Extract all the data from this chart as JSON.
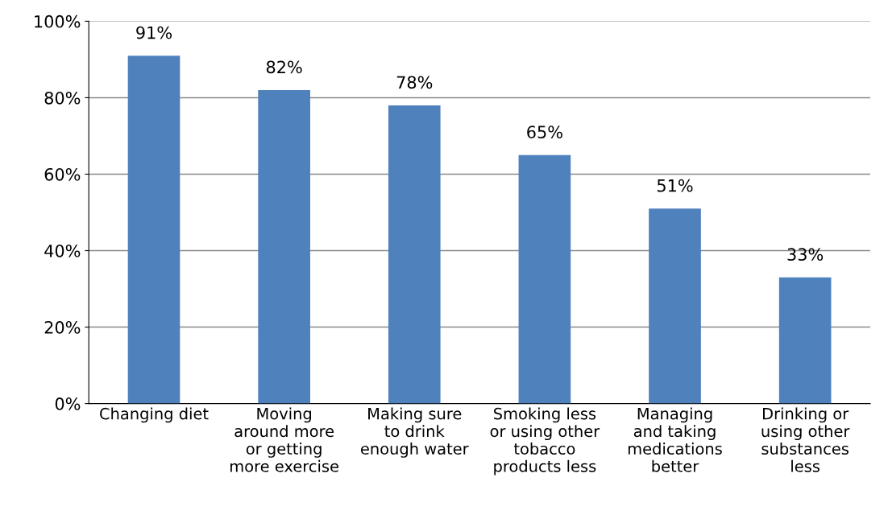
{
  "chart_data": {
    "type": "bar",
    "categories": [
      "Changing diet",
      "Moving\naround more\nor getting\nmore exercise",
      "Making sure\nto drink\nenough water",
      "Smoking less\nor using other\ntobacco\nproducts less",
      "Managing\nand taking\nmedications\nbetter",
      "Drinking or\nusing other\nsubstances\nless"
    ],
    "values": [
      91,
      82,
      78,
      65,
      51,
      33
    ],
    "value_labels": [
      "91%",
      "82%",
      "78%",
      "65%",
      "51%",
      "33%"
    ],
    "color": "#4f81bd",
    "ylim": [
      0,
      100
    ],
    "yticks": [
      {
        "value": 0,
        "label": "0%"
      },
      {
        "value": 20,
        "label": "20%"
      },
      {
        "value": 40,
        "label": "40%"
      },
      {
        "value": 60,
        "label": "60%"
      },
      {
        "value": 80,
        "label": "80%"
      },
      {
        "value": 100,
        "label": "100%"
      }
    ],
    "grid": "y"
  }
}
